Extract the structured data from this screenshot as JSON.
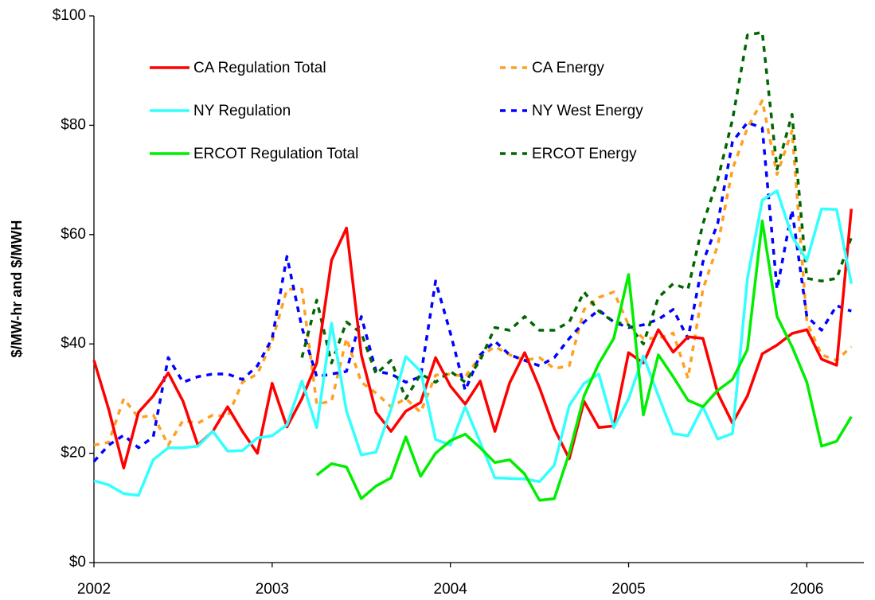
{
  "chart_data": {
    "type": "line",
    "y_label": "$/MW-hr and $/MWH",
    "x": [
      2002,
      2002.083,
      2002.167,
      2002.25,
      2002.333,
      2002.417,
      2002.5,
      2002.583,
      2002.667,
      2002.75,
      2002.833,
      2002.917,
      2003,
      2003.083,
      2003.167,
      2003.25,
      2003.333,
      2003.417,
      2003.5,
      2003.583,
      2003.667,
      2003.75,
      2003.833,
      2003.917,
      2004,
      2004.083,
      2004.167,
      2004.25,
      2004.333,
      2004.417,
      2004.5,
      2004.583,
      2004.667,
      2004.75,
      2004.833,
      2004.917,
      2005,
      2005.083,
      2005.167,
      2005.25,
      2005.333,
      2005.417,
      2005.5,
      2005.583,
      2005.667,
      2005.75,
      2005.833,
      2005.917,
      2006,
      2006.083,
      2006.167,
      2006.25
    ],
    "xlim": [
      2002,
      2006.32
    ],
    "xticks": [
      2002,
      2003,
      2004,
      2005,
      2006
    ],
    "ylim": [
      0,
      100
    ],
    "yticks": [
      {
        "value": 0,
        "label": "$0"
      },
      {
        "value": 20,
        "label": "$20"
      },
      {
        "value": 40,
        "label": "$40"
      },
      {
        "value": 60,
        "label": "$60"
      },
      {
        "value": 80,
        "label": "$80"
      },
      {
        "value": 100,
        "label": "$100"
      }
    ],
    "legend": "upper left",
    "series": [
      {
        "name": "CA Regulation Total",
        "color": "#ff0000",
        "style": "solid",
        "values": [
          37,
          28,
          17.3,
          27.5,
          30.5,
          34.7,
          29.5,
          21.5,
          24,
          28.5,
          24,
          20,
          32.8,
          24.8,
          30,
          36.5,
          55.3,
          61.2,
          38,
          27.5,
          24,
          27.7,
          29.3,
          37.5,
          32.3,
          29,
          33.2,
          24,
          32.9,
          38.4,
          32,
          24.5,
          19,
          29.5,
          24.7,
          25,
          38.4,
          36.5,
          42.6,
          38.5,
          41.3,
          41,
          31,
          25.5,
          30.5,
          38.2,
          39.8,
          41.9,
          42.6,
          37.2,
          36.1,
          64.7
        ]
      },
      {
        "name": "NY Regulation",
        "color": "#33ffff",
        "style": "solid",
        "values": [
          15,
          14.2,
          12.6,
          12.3,
          18.8,
          21,
          21,
          21.3,
          24,
          20.4,
          20.5,
          22.8,
          23.2,
          25.2,
          33.2,
          24.7,
          43.8,
          27.7,
          19.7,
          20.2,
          28,
          37.7,
          35,
          22.5,
          21.5,
          28.5,
          22,
          15.5,
          15.4,
          15.3,
          14.8,
          17.8,
          28.7,
          32.8,
          34.5,
          24.7,
          30,
          37.8,
          30.5,
          23.6,
          23.2,
          28.5,
          22.6,
          23.6,
          52,
          66.3,
          68,
          59.7,
          55.3,
          64.7,
          64.6,
          51
        ]
      },
      {
        "name": "ERCOT Regulation Total",
        "color": "#00ee00",
        "style": "solid",
        "values": [
          null,
          null,
          null,
          null,
          null,
          null,
          null,
          null,
          null,
          null,
          null,
          null,
          null,
          null,
          null,
          16,
          18.1,
          17.5,
          11.7,
          14,
          15.5,
          23,
          15.8,
          20,
          22.3,
          23.5,
          21,
          18.3,
          18.8,
          16.2,
          11.4,
          11.7,
          20,
          30.5,
          36.4,
          41,
          52.7,
          27,
          38,
          34,
          29.7,
          28.5,
          31.5,
          33.5,
          39,
          62.5,
          45,
          39.5,
          33,
          21.3,
          22.2,
          26.7
        ]
      },
      {
        "name": "CA Energy",
        "color": "#ffa020",
        "style": "dashed",
        "values": [
          21.5,
          22,
          30,
          26.5,
          27,
          21.5,
          26,
          25.5,
          27,
          26.7,
          33,
          34.5,
          40.5,
          50,
          50,
          29,
          29.5,
          41,
          33,
          31,
          28.5,
          30,
          27.5,
          34.3,
          34.5,
          34,
          37.7,
          39.5,
          38,
          37,
          37.5,
          35.5,
          36,
          46.3,
          48.5,
          49.5,
          43.5,
          41,
          41,
          42,
          33.7,
          50,
          58,
          72,
          79.5,
          84.5,
          71,
          79,
          44,
          38,
          37,
          39.5
        ]
      },
      {
        "name": "NY West Energy",
        "color": "#0000ff",
        "style": "dashed",
        "values": [
          18.5,
          21.5,
          23.3,
          21,
          23,
          37.5,
          33,
          34,
          34.5,
          34.5,
          33.5,
          36,
          41,
          56,
          43,
          34,
          34.5,
          35,
          45,
          35,
          34.5,
          33,
          34,
          51.5,
          42,
          31.5,
          38,
          40.5,
          38,
          37,
          36,
          37.5,
          41,
          44,
          46.2,
          44,
          43,
          43.5,
          44.5,
          46.3,
          41,
          55,
          62,
          77,
          80.5,
          79.5,
          50,
          64.5,
          45,
          42.5,
          47,
          46
        ]
      },
      {
        "name": "ERCOT Energy",
        "color": "#006600",
        "style": "dashed",
        "values": [
          null,
          null,
          null,
          null,
          null,
          null,
          null,
          null,
          null,
          null,
          null,
          null,
          null,
          null,
          37.5,
          48,
          36.5,
          44,
          42,
          34.5,
          37,
          30,
          34.5,
          33,
          35,
          33,
          37,
          43,
          42.5,
          45,
          42.5,
          42.5,
          44,
          49.5,
          46,
          44,
          43.5,
          40,
          48.5,
          51,
          50,
          62,
          70,
          81,
          96.5,
          97,
          72,
          82,
          52,
          51.5,
          52,
          59.5
        ]
      }
    ]
  }
}
